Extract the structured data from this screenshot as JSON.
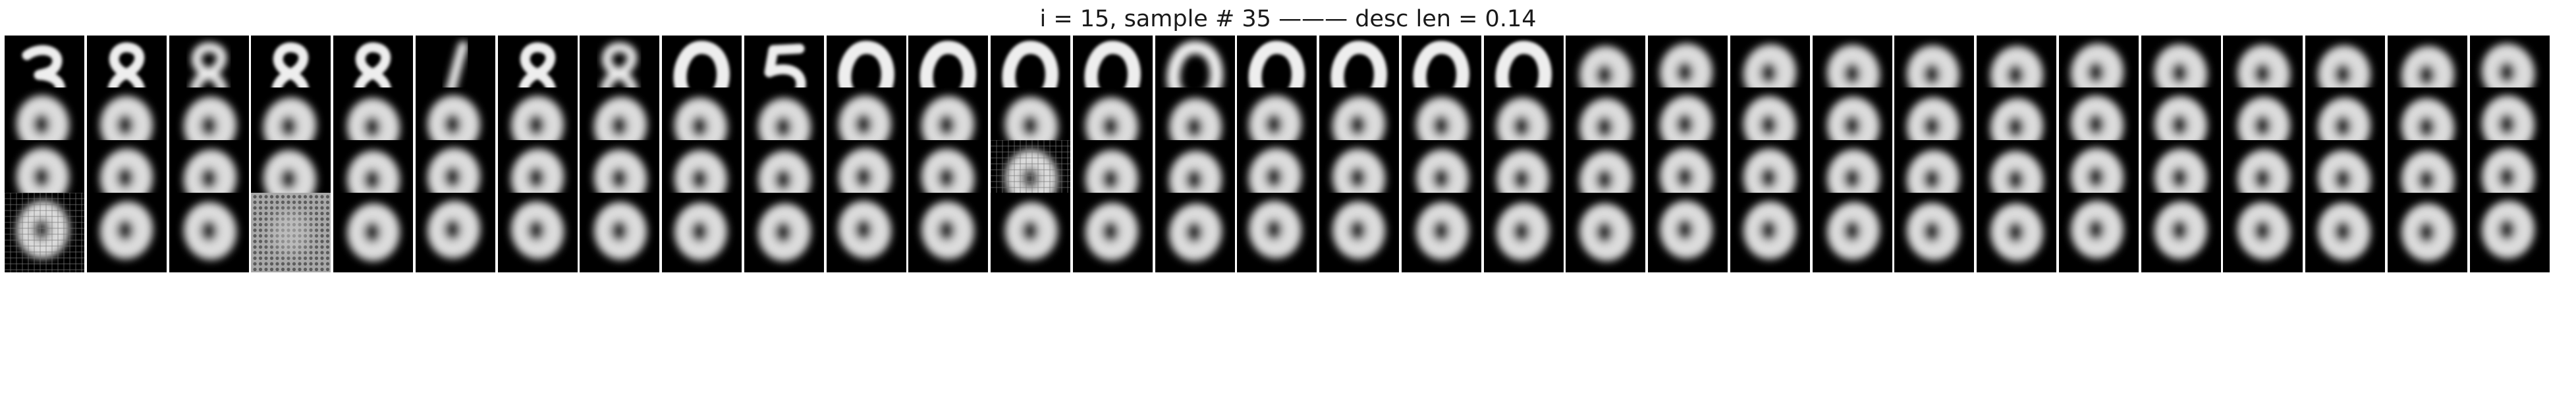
{
  "figure": {
    "title": "i = 15, sample # 35 ——— desc len = 0.14",
    "background": "#ffffff",
    "tile_background": "#000000"
  },
  "grid": {
    "rows": 4,
    "columns": 31,
    "tile_kinds": [
      [
        "digit-3",
        "digit-8",
        "digit-8-blurred",
        "digit-8",
        "digit-8",
        "digit-1-blurred",
        "digit-8",
        "digit-8-blurred",
        "digit-0",
        "digit-5",
        "digit-0",
        "digit-0",
        "digit-0",
        "digit-0",
        "digit-0-blurred",
        "digit-0",
        "digit-0",
        "digit-0",
        "digit-0",
        "blob-0",
        "blob-0",
        "blob-0",
        "blob-0",
        "blob-0",
        "blob-0",
        "blob-0",
        "blob-0",
        "blob-0",
        "blob-0",
        "blob-0",
        "blob-0"
      ],
      [
        "blob-0",
        "blob-0",
        "blob-0",
        "blob-0",
        "blob-0",
        "blob-0",
        "blob-0",
        "blob-0",
        "blob-0",
        "blob-0",
        "blob-0",
        "blob-0",
        "blob-0",
        "blob-0",
        "blob-0",
        "blob-0",
        "blob-0",
        "blob-0",
        "blob-0",
        "blob-0",
        "blob-0",
        "blob-0",
        "blob-0",
        "blob-0",
        "blob-0",
        "blob-0",
        "blob-0",
        "blob-0",
        "blob-0",
        "blob-0",
        "blob-0"
      ],
      [
        "blob-0",
        "blob-0",
        "blob-0",
        "blob-0",
        "blob-0",
        "blob-0",
        "blob-0",
        "blob-0",
        "blob-0",
        "blob-0",
        "blob-0",
        "blob-0",
        "noisy-blob",
        "blob-0",
        "blob-0",
        "blob-0",
        "blob-0",
        "blob-0",
        "blob-0",
        "blob-0",
        "blob-0",
        "blob-0",
        "blob-0",
        "blob-0",
        "blob-0",
        "blob-0",
        "blob-0",
        "blob-0",
        "blob-0",
        "blob-0",
        "blob-0"
      ],
      [
        "noisy-blob",
        "blob-0",
        "blob-0",
        "grid-noise",
        "blob-0",
        "blob-0",
        "blob-0",
        "blob-0",
        "blob-0",
        "blob-0",
        "blob-0",
        "blob-0",
        "blob-0",
        "blob-0",
        "blob-0",
        "blob-0",
        "blob-0",
        "blob-0",
        "blob-0",
        "blob-0",
        "blob-0",
        "blob-0",
        "blob-0",
        "blob-0",
        "blob-0",
        "blob-0",
        "blob-0",
        "blob-0",
        "blob-0",
        "blob-0",
        "blob-0"
      ]
    ]
  }
}
